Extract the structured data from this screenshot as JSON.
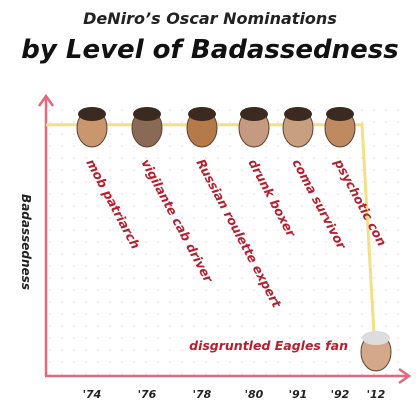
{
  "chart_data": {
    "type": "line",
    "title": "DeNiro’s Oscar Nominations",
    "subtitle": "by Level of Badassedness",
    "y_label": "Badassedness",
    "categories": [
      "'74",
      "'76",
      "'78",
      "'80",
      "'91",
      "'92",
      "'12"
    ],
    "roles": [
      "mob patriarch",
      "vigilante cab driver",
      "Russian roulette expert",
      "drunk boxer",
      "coma survivor",
      "psychotic con",
      "disgruntled Eagles fan"
    ],
    "values": [
      91,
      91,
      91,
      91,
      91,
      91,
      2
    ],
    "color": "#f3df86",
    "ylim": [
      0,
      100
    ]
  }
}
